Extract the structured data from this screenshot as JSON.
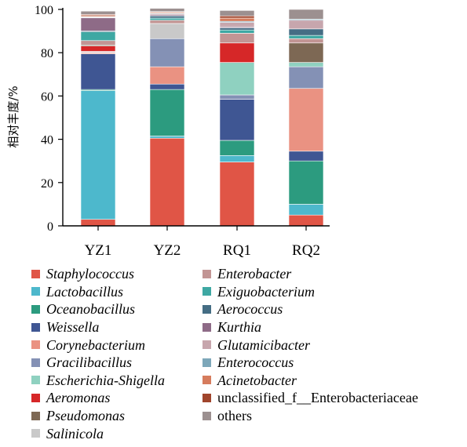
{
  "chart_data": {
    "type": "bar",
    "stacked": true,
    "categories": [
      "YZ1",
      "YZ2",
      "RQ1",
      "RQ2"
    ],
    "ylabel": "相对丰度/%",
    "ylim": [
      0,
      100
    ],
    "yticks": [
      0,
      20,
      40,
      60,
      80,
      100
    ],
    "grid": false,
    "legend_position": "bottom",
    "series": [
      {
        "name": "Staphylococcus",
        "italic": true,
        "color": "#e05546",
        "values": [
          3,
          40.5,
          29.5,
          5
        ]
      },
      {
        "name": "Lactobacillus",
        "italic": true,
        "color": "#4db8cc",
        "values": [
          59.5,
          1,
          3,
          5
        ]
      },
      {
        "name": "Oceanobacillus",
        "italic": true,
        "color": "#2c9b7f",
        "values": [
          0.5,
          21.5,
          7,
          20
        ]
      },
      {
        "name": "Weissella",
        "italic": true,
        "color": "#3f5693",
        "values": [
          16.5,
          2.5,
          19,
          4.5
        ]
      },
      {
        "name": "Corynebacterium",
        "italic": true,
        "color": "#ea9282",
        "values": [
          0.5,
          8,
          0,
          29
        ]
      },
      {
        "name": "Gracilibacillus",
        "italic": true,
        "color": "#8491b5",
        "values": [
          0.3,
          13,
          2,
          10
        ]
      },
      {
        "name": "Escherichia-Shigella",
        "italic": true,
        "color": "#8fd1c0",
        "values": [
          0.3,
          0,
          15,
          2
        ]
      },
      {
        "name": "Aeromonas",
        "italic": true,
        "color": "#d62728",
        "values": [
          2.5,
          0,
          9,
          0
        ]
      },
      {
        "name": "Pseudomonas",
        "italic": true,
        "color": "#7d6854",
        "values": [
          0.5,
          0,
          0,
          9
        ]
      },
      {
        "name": "Salinicola",
        "italic": true,
        "color": "#c9c9c9",
        "values": [
          0,
          7,
          0,
          0
        ]
      },
      {
        "name": "Enterobacter",
        "italic": true,
        "color": "#c29594",
        "values": [
          2,
          1.5,
          4.5,
          2
        ]
      },
      {
        "name": "Exiguobacterium",
        "italic": true,
        "color": "#3ea8a3",
        "values": [
          4,
          1,
          1.5,
          1.5
        ]
      },
      {
        "name": "Aerococcus",
        "italic": true,
        "color": "#456d84",
        "values": [
          0.5,
          1,
          1,
          3
        ]
      },
      {
        "name": "Kurthia",
        "italic": true,
        "color": "#8e6b87",
        "values": [
          6,
          0.5,
          0.5,
          0
        ]
      },
      {
        "name": "Glutamicibacter",
        "italic": true,
        "color": "#c7a6ad",
        "values": [
          0.3,
          0.5,
          2,
          4
        ]
      },
      {
        "name": "Enterococcus",
        "italic": true,
        "color": "#7da7b9",
        "values": [
          0.3,
          0.3,
          0.5,
          0.5
        ]
      },
      {
        "name": "Acinetobacter",
        "italic": true,
        "color": "#d67c5d",
        "values": [
          0.5,
          0.5,
          1.5,
          0
        ]
      },
      {
        "name": "unclassified_f__Enterobacteriaceae",
        "italic": false,
        "color": "#a0452c",
        "values": [
          0.5,
          0.2,
          1,
          0
        ]
      },
      {
        "name": "others",
        "italic": false,
        "color": "#9c9090",
        "values": [
          1.5,
          1.5,
          2.5,
          4.5
        ]
      }
    ]
  }
}
